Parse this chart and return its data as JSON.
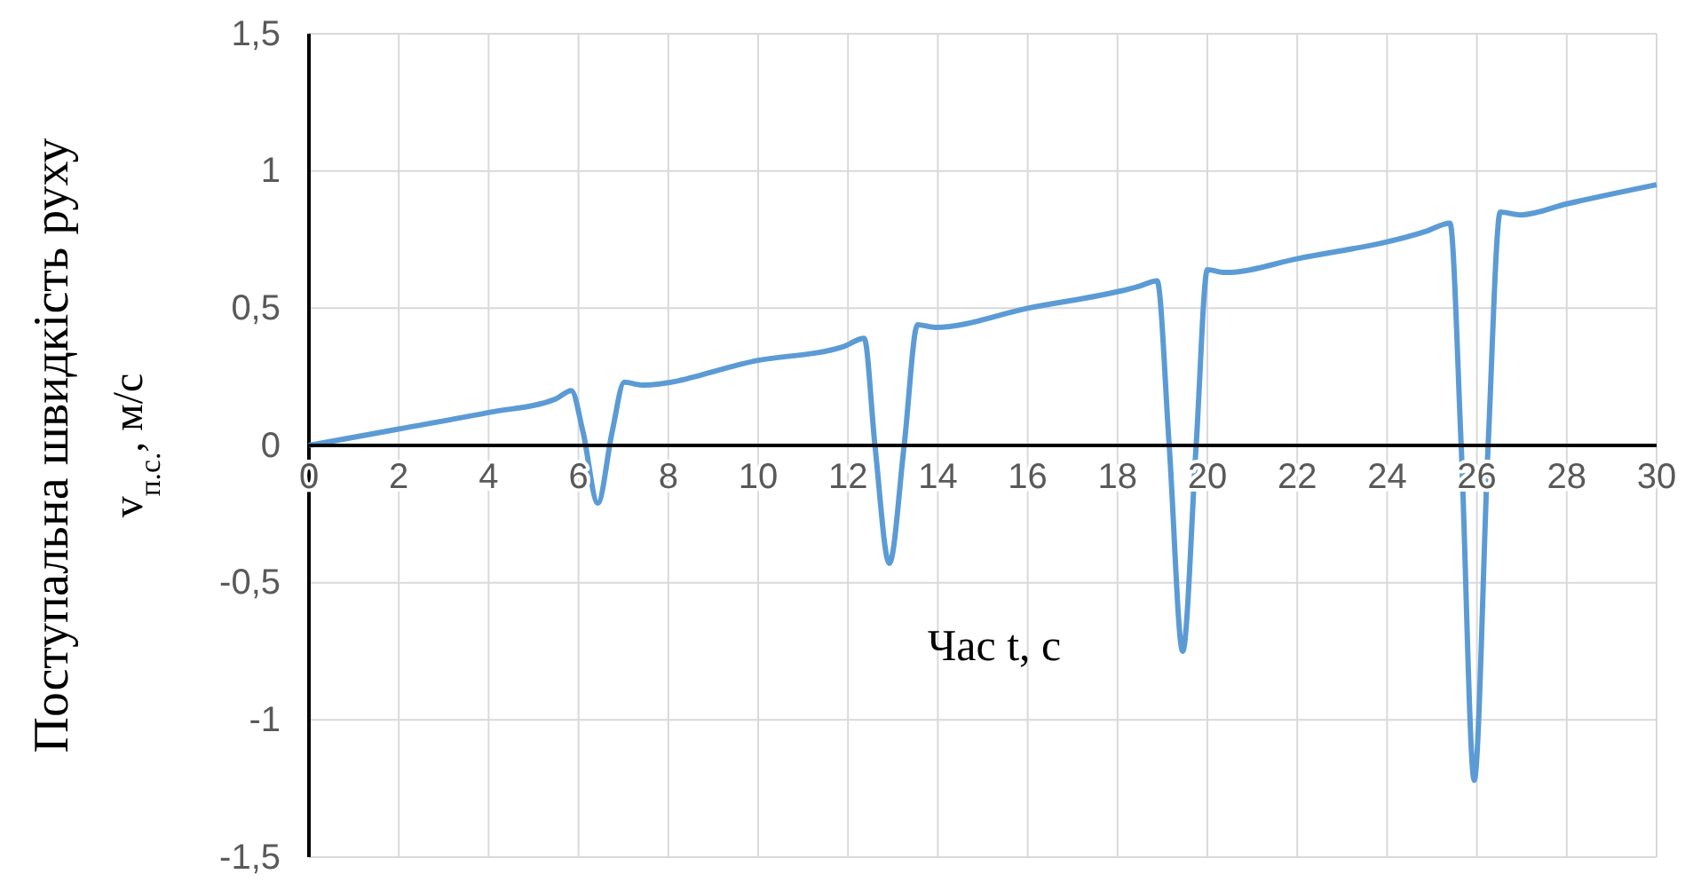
{
  "chart_data": {
    "type": "line",
    "xlabel": "Час t, с",
    "ylabel": "Поступальна швидкість руху\nv$_{п.с.}$, м/с",
    "xlim": [
      0,
      30
    ],
    "ylim": [
      -1.5,
      1.5
    ],
    "xticks": [
      0,
      2,
      4,
      6,
      8,
      10,
      12,
      14,
      16,
      18,
      20,
      22,
      24,
      26,
      28,
      30
    ],
    "yticks": [
      {
        "value": -1.5,
        "label": "-1,5"
      },
      {
        "value": -1,
        "label": "-1"
      },
      {
        "value": -0.5,
        "label": "-0,5"
      },
      {
        "value": 0,
        "label": "0"
      },
      {
        "value": 0.5,
        "label": "0,5"
      },
      {
        "value": 1,
        "label": "1"
      },
      {
        "value": 1.5,
        "label": "1,5"
      }
    ],
    "grid": true,
    "marker": "none",
    "line_style": "solid",
    "series": [
      {
        "color": "#5b9bd5",
        "x": [
          0,
          2,
          4,
          5.5,
          5.84,
          6.1,
          6.43,
          6.75,
          7.02,
          7.42,
          10,
          11.9,
          12.36,
          12.6,
          12.92,
          13.25,
          13.55,
          13.94,
          16,
          18.48,
          18.88,
          19.15,
          19.45,
          19.75,
          20.0,
          20.4,
          22,
          24.87,
          25.4,
          25.65,
          25.94,
          26.25,
          26.52,
          26.98,
          28,
          30
        ],
        "values": [
          0,
          0.06,
          0.12,
          0.17,
          0.2,
          0.05,
          -0.21,
          0.05,
          0.23,
          0.22,
          0.31,
          0.36,
          0.39,
          0.0,
          -0.43,
          0.0,
          0.44,
          0.43,
          0.5,
          0.58,
          0.6,
          0.0,
          -0.75,
          0.0,
          0.64,
          0.63,
          0.68,
          0.78,
          0.81,
          0.0,
          -1.22,
          0.0,
          0.85,
          0.84,
          0.88,
          0.95
        ]
      }
    ]
  }
}
